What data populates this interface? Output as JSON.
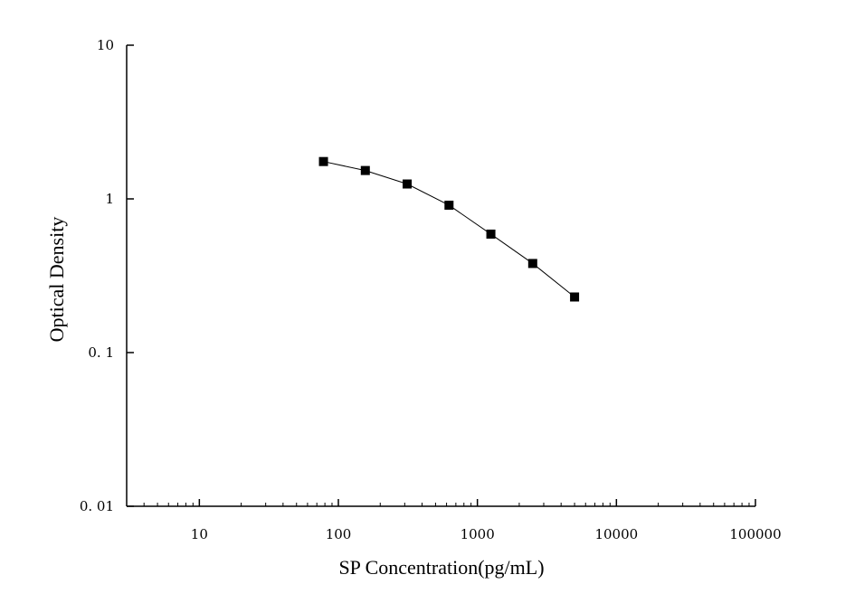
{
  "chart_data": {
    "type": "line",
    "xlabel": "SP Concentration(pg/mL)",
    "ylabel": "Optical Density",
    "x_scale": "log",
    "y_scale": "log",
    "xlim": [
      3,
      100000
    ],
    "ylim": [
      0.01,
      10
    ],
    "x_ticks": [
      {
        "value": 10,
        "label": "10"
      },
      {
        "value": 100,
        "label": "100"
      },
      {
        "value": 1000,
        "label": "1000"
      },
      {
        "value": 10000,
        "label": "10000"
      },
      {
        "value": 100000,
        "label": "100000"
      }
    ],
    "y_ticks": [
      {
        "value": 0.01,
        "label": "0. 01"
      },
      {
        "value": 0.1,
        "label": "0. 1"
      },
      {
        "value": 1,
        "label": "1"
      },
      {
        "value": 10,
        "label": "10"
      }
    ],
    "grid": false,
    "series": [
      {
        "marker": "square",
        "color": "#000000",
        "x": [
          78.13,
          156.25,
          312.5,
          625,
          1250,
          2500,
          5000
        ],
        "y": [
          1.75,
          1.53,
          1.25,
          0.91,
          0.59,
          0.38,
          0.23
        ]
      }
    ]
  }
}
